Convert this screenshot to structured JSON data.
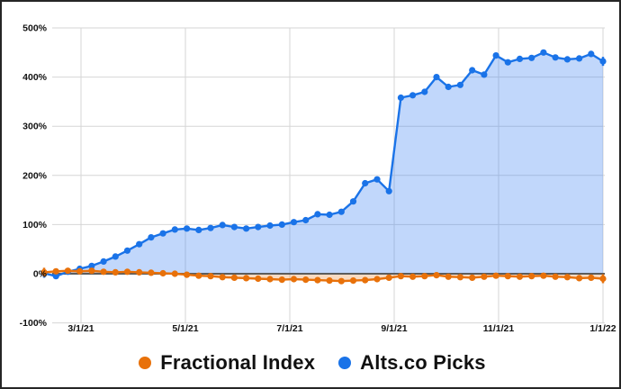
{
  "chart_data": {
    "type": "area",
    "title": "",
    "x_tick_labels": [
      "3/1/21",
      "5/1/21",
      "7/1/21",
      "9/1/21",
      "11/1/21",
      "1/1/22"
    ],
    "y_tick_labels": [
      "500%",
      "400%",
      "300%",
      "200%",
      "100%",
      "0%",
      "-100%"
    ],
    "y_axis": {
      "min": -100,
      "max": 500,
      "step": 100,
      "unit": "%"
    },
    "x_axis": {
      "start_label": "3/1/21",
      "end_label": "1/1/22",
      "frequency": "weekly"
    },
    "baseline_value": 0,
    "grid": true,
    "legend_position": "bottom",
    "series": [
      {
        "name": "Fractional Index",
        "color": "#E8710A",
        "fill_color": "rgba(232,113,10,0.25)",
        "values": [
          3,
          5,
          6,
          5,
          6,
          4,
          3,
          4,
          3,
          2,
          1,
          0,
          -2,
          -4,
          -5,
          -7,
          -8,
          -9,
          -10,
          -11,
          -12,
          -11,
          -12,
          -13,
          -14,
          -15,
          -14,
          -13,
          -11,
          -8,
          -5,
          -6,
          -5,
          -3,
          -6,
          -7,
          -8,
          -6,
          -4,
          -5,
          -6,
          -5,
          -4,
          -6,
          -7,
          -9,
          -8,
          -10
        ]
      },
      {
        "name": "Alts.co Picks",
        "color": "#1A73E8",
        "fill_color": "rgba(66,133,244,0.33)",
        "values": [
          1,
          -5,
          4,
          10,
          16,
          25,
          35,
          47,
          60,
          74,
          82,
          90,
          92,
          89,
          93,
          99,
          95,
          92,
          95,
          98,
          100,
          105,
          109,
          121,
          120,
          126,
          147,
          184,
          192,
          168,
          358,
          363,
          370,
          400,
          380,
          384,
          414,
          405,
          444,
          430,
          437,
          439,
          450,
          440,
          436,
          438,
          447,
          432
        ]
      }
    ],
    "grid_color": "#D6D6D6",
    "zero_line_color": "#5C5C5C",
    "axis_label_color": "#111111"
  },
  "legend": {
    "items": [
      {
        "label": "Fractional Index",
        "color": "#E8710A"
      },
      {
        "label": "Alts.co Picks",
        "color": "#1A73E8"
      }
    ]
  }
}
